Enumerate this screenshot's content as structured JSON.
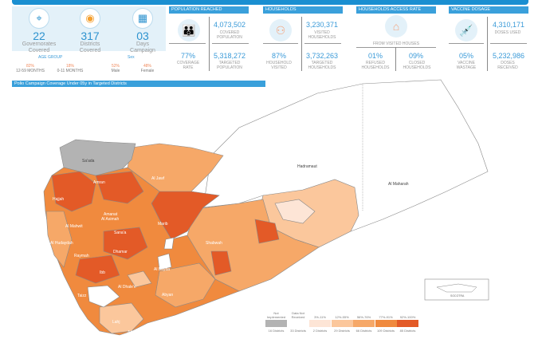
{
  "summary": {
    "governorates": {
      "value": "22",
      "label1": "Governorates",
      "label2": "Covered",
      "icon": "map-pin-icon"
    },
    "districts": {
      "value": "317",
      "label1": "Districts",
      "label2": "Covered",
      "icon": "map-districts-icon"
    },
    "days": {
      "value": "03",
      "label1": "Days",
      "label2": "Campaign",
      "icon": "calendar-icon"
    }
  },
  "age_group": {
    "title": "AGE GROUP",
    "items": [
      {
        "pct": "82%",
        "label": "12-59 MONTHS"
      },
      {
        "pct": "18%",
        "label": "0-11 MONTHS"
      }
    ]
  },
  "sex": {
    "title": "Sex",
    "items": [
      {
        "pct": "52%",
        "label": "Male"
      },
      {
        "pct": "48%",
        "label": "Female"
      }
    ]
  },
  "population": {
    "title": "POPULATION REACHED",
    "covered": "4,073,502",
    "covered_label": "COVERED POPULATION",
    "rate": "77%",
    "rate_label": "COVERAGE RATE",
    "targeted": "5,318,272",
    "targeted_label": "TARGETED POPULATION"
  },
  "households": {
    "title": "HOUSEHOLDS",
    "visited": "3,230,371",
    "visited_label": "VISITED HOUSEHOLDS",
    "rate": "87%",
    "rate_label": "HOUSEHOLD VISITED",
    "targeted": "3,732,263",
    "targeted_label": "TARGETED HOUSEHOLDS"
  },
  "access": {
    "title": "HOUSEHOLDS ACCESS RATE",
    "sub": "FROM VISITED HOUSES",
    "refused": "01%",
    "refused_label": "REFUSED HOUSEHOLDS",
    "closed": "09%",
    "closed_label": "CLOSED HOUSEHOLDS"
  },
  "vaccine": {
    "title": "VACCINE DOSAGE",
    "used": "4,310,171",
    "used_label": "DOSES USED",
    "wastage": "05%",
    "wastage_label": "VACCINE WASTAGE",
    "received": "5,232,986",
    "received_label": "DOSES RECEIVED"
  },
  "map": {
    "title": "Polio Campaign Coverage Under 05y in Targeted Districts",
    "labels": [
      "Sa'ada",
      "Amran",
      "Al Jawf",
      "Hajjah",
      "Amanat",
      "Al Asimah",
      "Al Mahwit",
      "Sana'a",
      "Marib",
      "Al Hudaydah",
      "Raymah",
      "Dhamar",
      "Shabwah",
      "Hadramaut",
      "Al Maharah",
      "Al Bayda",
      "Ibb",
      "Al Dhale'e",
      "Abyan",
      "Taizz",
      "Lahj",
      "Aden",
      "SOCOTRA"
    ]
  },
  "legend": [
    {
      "label": "Not Implemented",
      "count": "16 Districts",
      "color": "#b3b3b3"
    },
    {
      "label": "Data Not Received",
      "count": "33 Districts",
      "color": "#ffffff"
    },
    {
      "label": "3%-11%",
      "count": "2 Districts",
      "color": "#fde5d6"
    },
    {
      "label": "12%-55%",
      "count": "29 Districts",
      "color": "#fbc79c"
    },
    {
      "label": "56%-76%",
      "count": "66 Districts",
      "color": "#f6a868"
    },
    {
      "label": "77%-91%",
      "count": "109 Districts",
      "color": "#f08a3e"
    },
    {
      "label": "92%-100%",
      "count": "85 Districts",
      "color": "#e35a27"
    }
  ]
}
